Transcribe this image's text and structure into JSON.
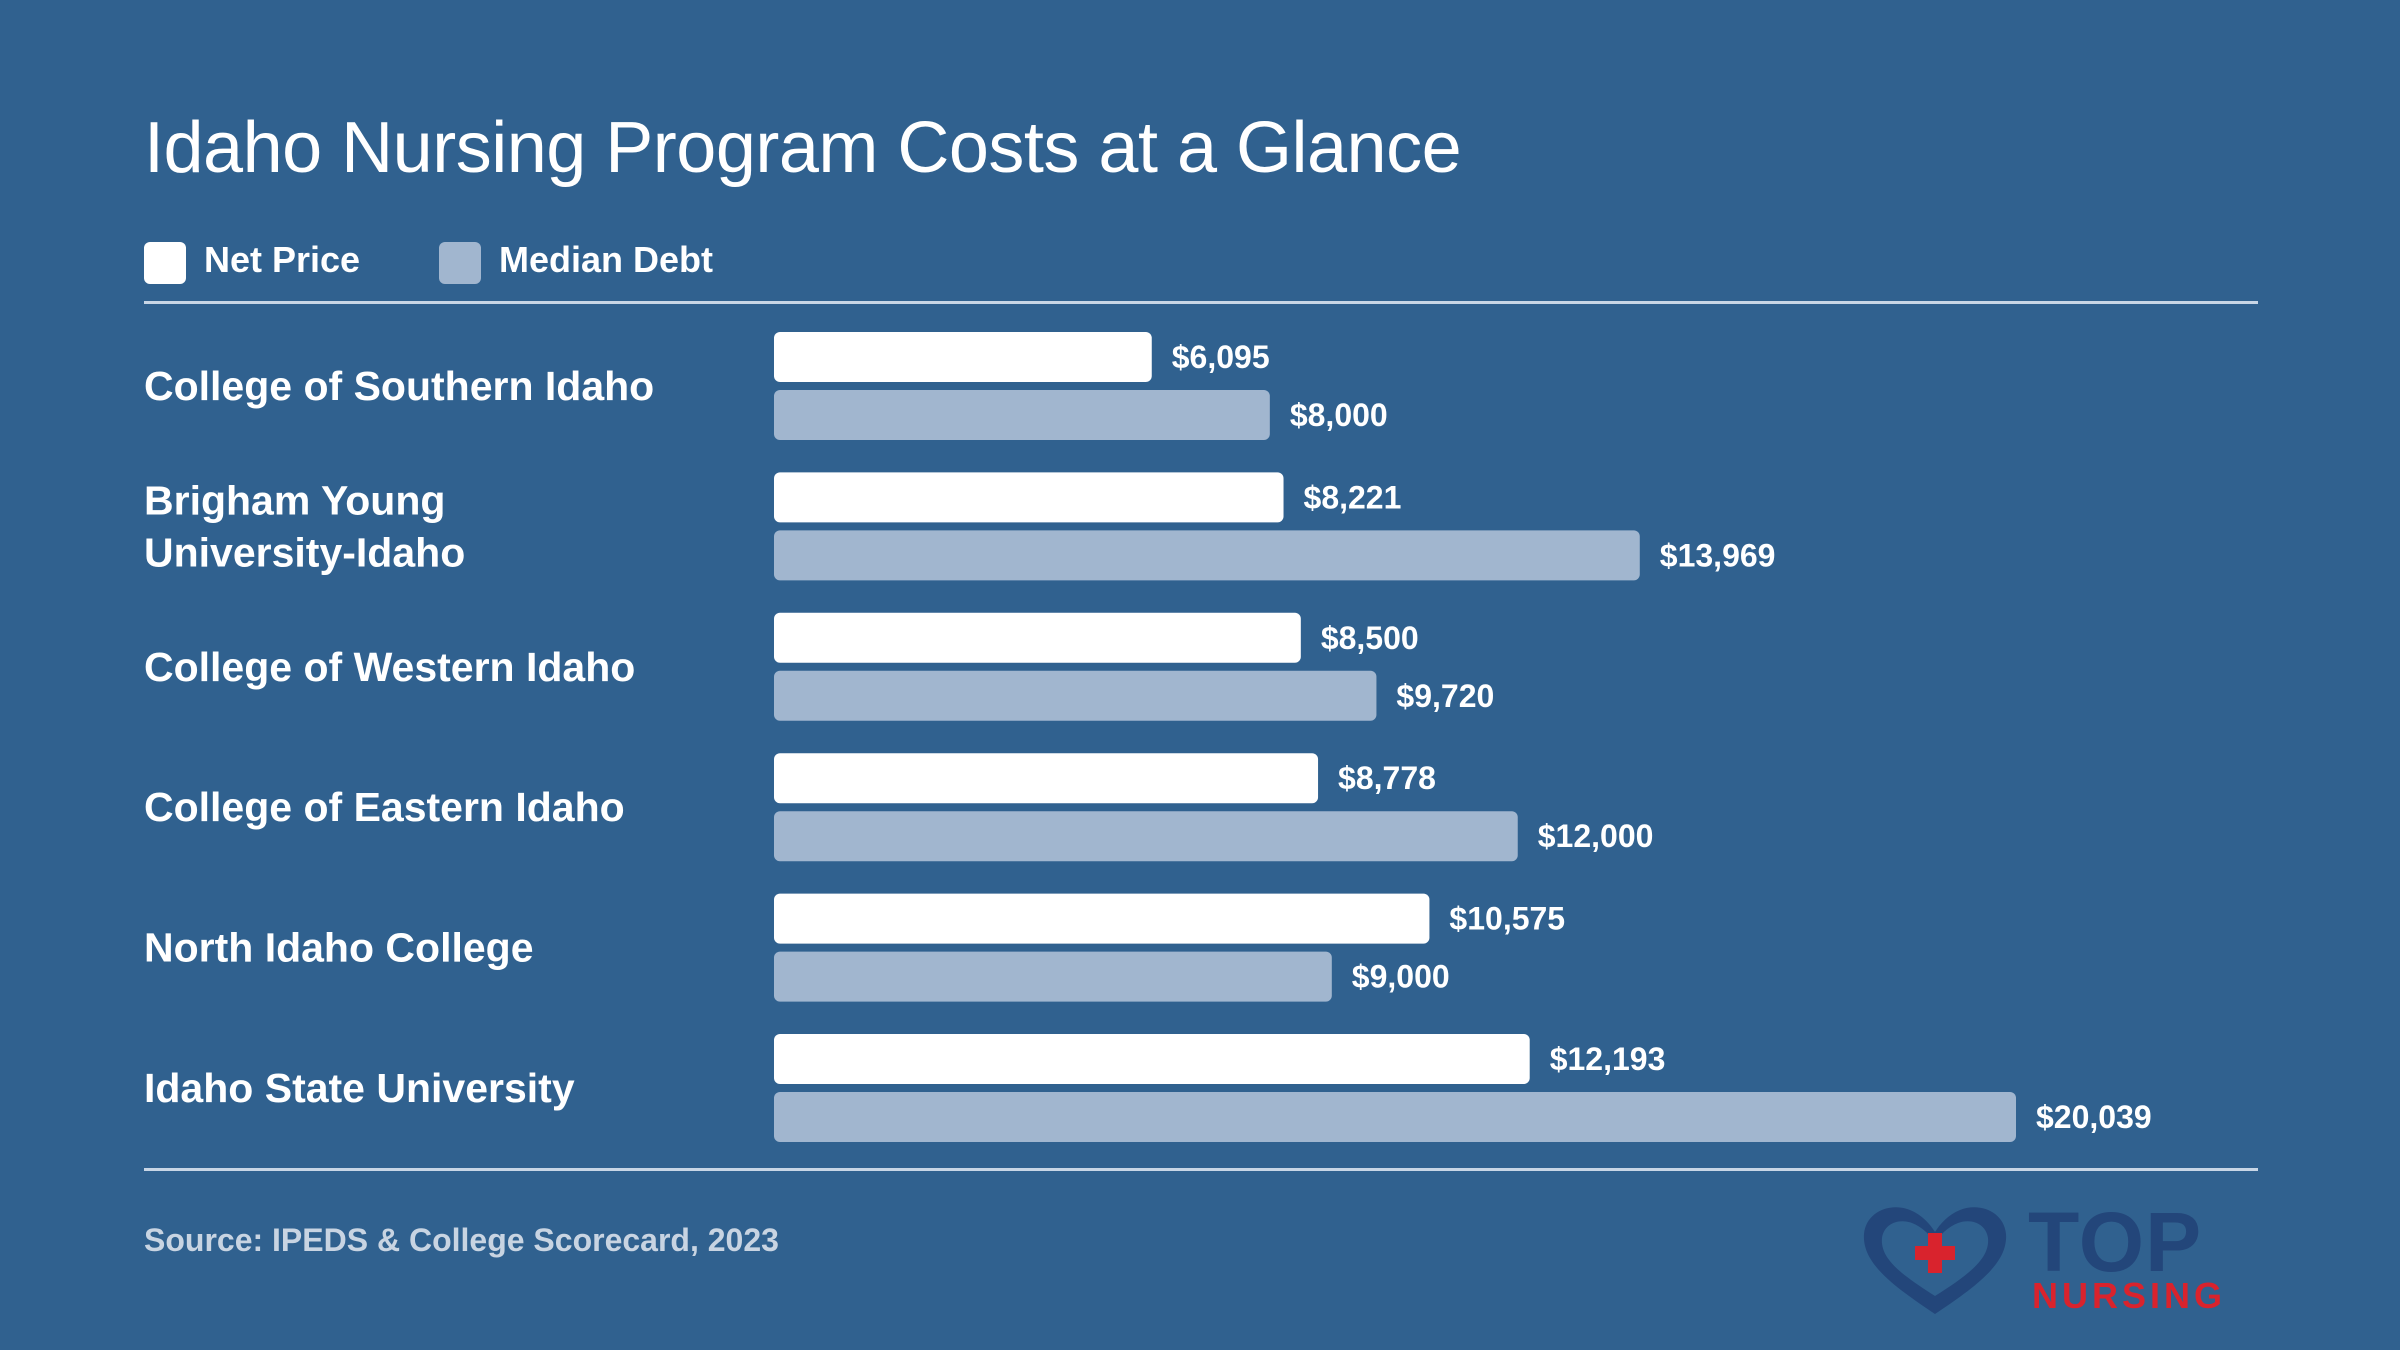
{
  "chart_data": {
    "type": "bar",
    "orientation": "horizontal",
    "title": "Idaho Nursing Program Costs at a Glance",
    "categories": [
      [
        "College of Southern Idaho"
      ],
      [
        "Brigham Young",
        "University-Idaho"
      ],
      [
        "College of Western Idaho"
      ],
      [
        "College of Eastern Idaho"
      ],
      [
        "North Idaho College"
      ],
      [
        "Idaho State University"
      ]
    ],
    "series": [
      {
        "name": "Net Price",
        "color": "#ffffff",
        "values": [
          6095,
          8221,
          8500,
          8778,
          10575,
          12193
        ],
        "labels": [
          "$6,095",
          "$8,221",
          "$8,500",
          "$8,778",
          "$10,575",
          "$12,193"
        ]
      },
      {
        "name": "Median Debt",
        "color": "#a1b6cf",
        "values": [
          8000,
          13969,
          9720,
          12000,
          9000,
          20039
        ],
        "labels": [
          "$8,000",
          "$13,969",
          "$9,720",
          "$12,000",
          "$9,000",
          "$20,039"
        ]
      }
    ],
    "xlim": [
      0,
      20039
    ],
    "grid": false,
    "legend_position": "top-left"
  },
  "source": "Source: IPEDS & College Scorecard, 2023",
  "logo": {
    "top": "TOP",
    "bottom": "NURSING",
    "icon": "heart-cross-icon"
  },
  "colors": {
    "background": "#30618f",
    "rule": "#c8d6e6",
    "logo_blue": "#23467a",
    "logo_red": "#d9232d"
  }
}
